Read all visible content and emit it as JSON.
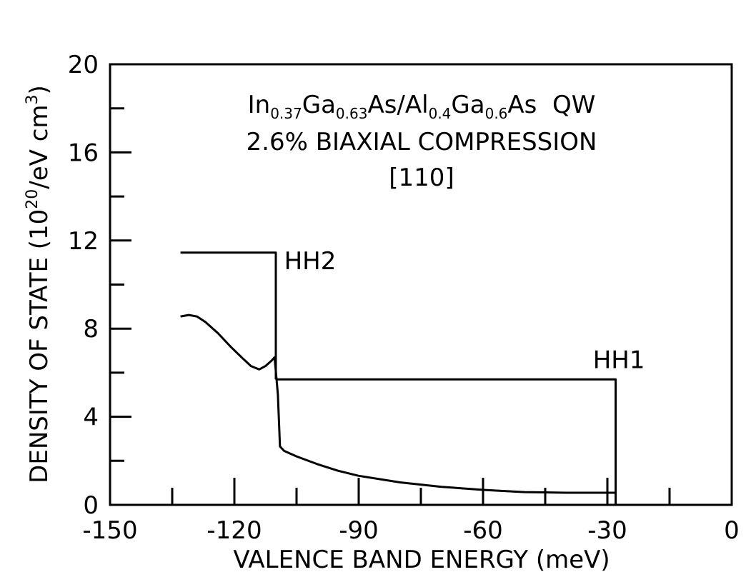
{
  "chart_data": {
    "type": "line",
    "title_lines": {
      "line1": {
        "in": "In",
        "in_sub": "0.37",
        "ga1": "Ga",
        "ga1_sub": "0.63",
        "mid": "As/Al",
        "al_sub": "0.4",
        "ga2": "Ga",
        "ga2_sub": "0.6",
        "tail": "As  QW"
      },
      "line2": "2.6% BIAXIAL COMPRESSION",
      "line3": "[110]"
    },
    "xlabel": "VALENCE BAND ENERGY (meV)",
    "ylabel": {
      "main": "DENSITY OF STATE (10",
      "exp": "20",
      "mid": "/eV cm",
      "exp2": "3",
      "end": ")"
    },
    "xlim": [
      -150,
      0
    ],
    "ylim": [
      0,
      20
    ],
    "x_ticks": [
      -150,
      -120,
      -90,
      -60,
      -30,
      0
    ],
    "x_tick_labels": [
      "-150",
      "-120",
      "-90",
      "-60",
      "-30",
      "0"
    ],
    "y_ticks": [
      0,
      4,
      8,
      12,
      16,
      20
    ],
    "y_tick_labels": [
      "0",
      "4",
      "8",
      "12",
      "16",
      "20"
    ],
    "grid": false,
    "series": [
      {
        "name": "HH2",
        "points": [
          [
            -133,
            11.45
          ],
          [
            -110,
            11.45
          ],
          [
            -110,
            5.7
          ]
        ]
      },
      {
        "name": "HH1",
        "points": [
          [
            -110,
            5.7
          ],
          [
            -28,
            5.7
          ],
          [
            -28,
            0
          ]
        ]
      },
      {
        "name": "",
        "points": [
          [
            -133,
            8.55
          ],
          [
            -131,
            8.62
          ],
          [
            -129,
            8.55
          ],
          [
            -127,
            8.3
          ],
          [
            -124,
            7.8
          ],
          [
            -121,
            7.2
          ],
          [
            -118,
            6.65
          ],
          [
            -116,
            6.3
          ],
          [
            -114,
            6.15
          ],
          [
            -112.5,
            6.3
          ],
          [
            -111,
            6.55
          ],
          [
            -110.3,
            6.7
          ],
          [
            -109.5,
            5.0
          ],
          [
            -109,
            2.65
          ],
          [
            -108,
            2.45
          ],
          [
            -105,
            2.2
          ],
          [
            -100,
            1.85
          ],
          [
            -95,
            1.55
          ],
          [
            -90,
            1.32
          ],
          [
            -80,
            1.02
          ],
          [
            -70,
            0.82
          ],
          [
            -60,
            0.68
          ],
          [
            -50,
            0.58
          ],
          [
            -40,
            0.55
          ],
          [
            -28,
            0.55
          ]
        ]
      }
    ],
    "annotations": [
      {
        "text": "HH2",
        "x": -108,
        "y": 10.7
      },
      {
        "text": "HH1",
        "x": -33.5,
        "y": 6.2
      }
    ]
  }
}
